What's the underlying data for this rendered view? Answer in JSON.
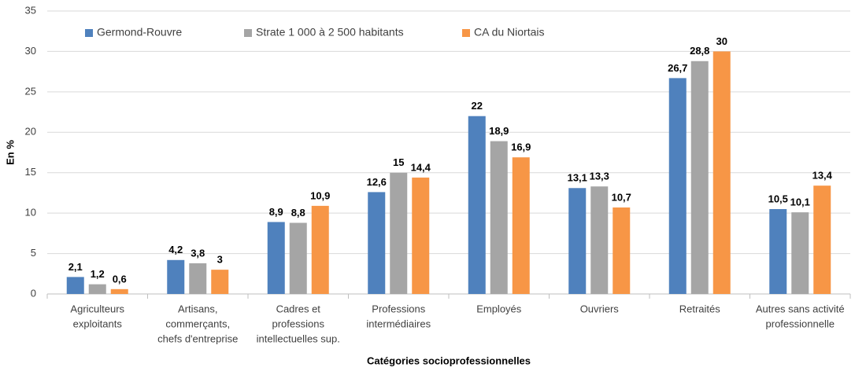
{
  "chart_data": {
    "type": "bar",
    "x_label": "Catégories socioprofessionnelles",
    "y_label": "En %",
    "categories": [
      [
        "Agriculteurs",
        "exploitants"
      ],
      [
        "Artisans,",
        "commerçants,",
        "chefs d'entreprise"
      ],
      [
        "Cadres et",
        "professions",
        "intellectuelles sup."
      ],
      [
        "Professions",
        "intermédiaires"
      ],
      [
        "Employés"
      ],
      [
        "Ouvriers"
      ],
      [
        "Retraités"
      ],
      [
        "Autres sans activité",
        "professionnelle"
      ]
    ],
    "series": [
      {
        "name": "Germond-Rouvre",
        "color": "#4f81bd",
        "values": [
          2.1,
          4.2,
          8.9,
          12.6,
          22,
          13.1,
          26.7,
          10.5
        ],
        "value_labels": [
          "2,1",
          "4,2",
          "8,9",
          "12,6",
          "22",
          "13,1",
          "26,7",
          "10,5"
        ]
      },
      {
        "name": "Strate 1 000 à 2 500 habitants",
        "color": "#a5a5a5",
        "values": [
          1.2,
          3.8,
          8.8,
          15,
          18.9,
          13.3,
          28.8,
          10.1
        ],
        "value_labels": [
          "1,2",
          "3,8",
          "8,8",
          "15",
          "18,9",
          "13,3",
          "28,8",
          "10,1"
        ]
      },
      {
        "name": "CA du Niortais",
        "color": "#f79646",
        "values": [
          0.6,
          3,
          10.9,
          14.4,
          16.9,
          10.7,
          30,
          13.4
        ],
        "value_labels": [
          "0,6",
          "3",
          "10,9",
          "14,4",
          "16,9",
          "10,7",
          "30",
          "13,4"
        ]
      }
    ],
    "ylim": [
      0,
      35
    ],
    "yticks": [
      0,
      5,
      10,
      15,
      20,
      25,
      30,
      35
    ],
    "grid": true,
    "legend": "top"
  }
}
